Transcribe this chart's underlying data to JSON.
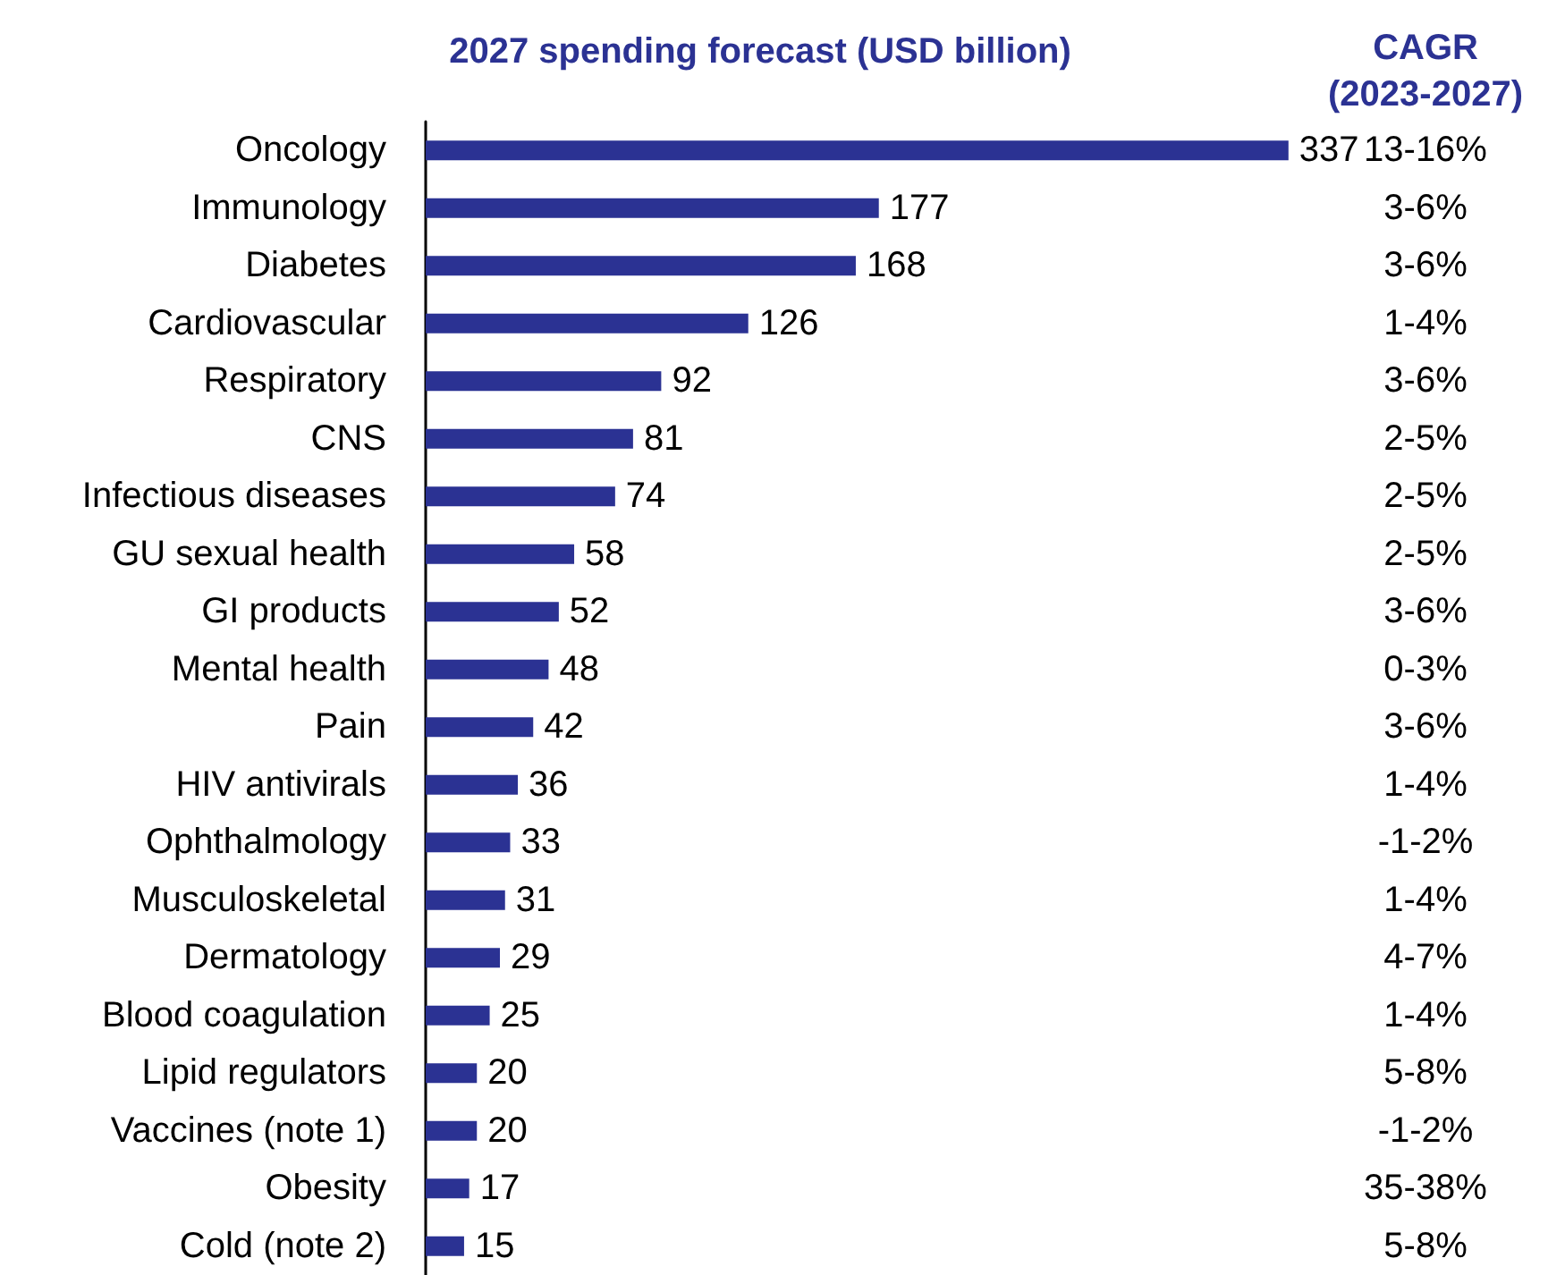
{
  "chart_data": {
    "type": "bar",
    "orientation": "horizontal",
    "title": "2027 spending forecast (USD billion)",
    "categories": [
      "Oncology",
      "Immunology",
      "Diabetes",
      "Cardiovascular",
      "Respiratory",
      "CNS",
      "Infectious diseases",
      "GU sexual health",
      "GI products",
      "Mental health",
      "Pain",
      "HIV antivirals",
      "Ophthalmology",
      "Musculoskeletal",
      "Dermatology",
      "Blood coagulation",
      "Lipid regulators",
      "Vaccines (note 1)",
      "Obesity",
      "Cold (note 2)"
    ],
    "values": [
      337,
      177,
      168,
      126,
      92,
      81,
      74,
      58,
      52,
      48,
      42,
      36,
      33,
      31,
      29,
      25,
      20,
      20,
      17,
      15
    ],
    "color": "#2b3293",
    "data_labels": true,
    "annotations": [
      "CAGR (2023-2027)",
      "13-16%",
      "3-6%",
      "3-6%",
      "1-4%",
      "3-6%",
      "2-5%",
      "2-5%",
      "2-5%",
      "3-6%",
      "0-3%",
      "3-6%",
      "1-4%",
      "-1-2%",
      "1-4%",
      "4-7%",
      "1-4%",
      "5-8%",
      "-1-2%",
      "35-38%",
      "5-8%"
    ]
  }
}
